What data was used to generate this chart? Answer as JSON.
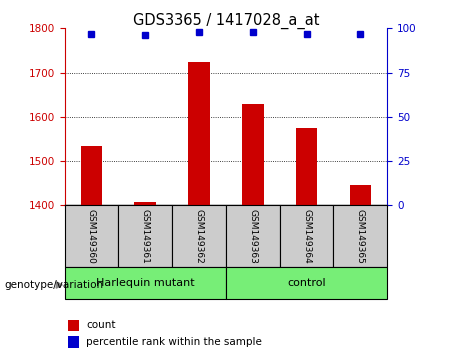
{
  "title": "GDS3365 / 1417028_a_at",
  "samples": [
    "GSM149360",
    "GSM149361",
    "GSM149362",
    "GSM149363",
    "GSM149364",
    "GSM149365"
  ],
  "counts": [
    1535,
    1408,
    1725,
    1630,
    1575,
    1445
  ],
  "percentile_ranks": [
    97,
    96,
    98,
    98,
    97,
    97
  ],
  "ylim_left": [
    1400,
    1800
  ],
  "ylim_right": [
    0,
    100
  ],
  "yticks_left": [
    1400,
    1500,
    1600,
    1700,
    1800
  ],
  "yticks_right": [
    0,
    25,
    50,
    75,
    100
  ],
  "bar_color": "#cc0000",
  "dot_color": "#0000cc",
  "group1_label": "Harlequin mutant",
  "group2_label": "control",
  "group1_indices": [
    0,
    1,
    2
  ],
  "group2_indices": [
    3,
    4,
    5
  ],
  "group_bg_color": "#77ee77",
  "sample_bg_color": "#cccccc",
  "left_axis_color": "#cc0000",
  "right_axis_color": "#0000cc",
  "legend_count_color": "#cc0000",
  "legend_pct_color": "#0000cc",
  "xlabel": "genotype/variation"
}
